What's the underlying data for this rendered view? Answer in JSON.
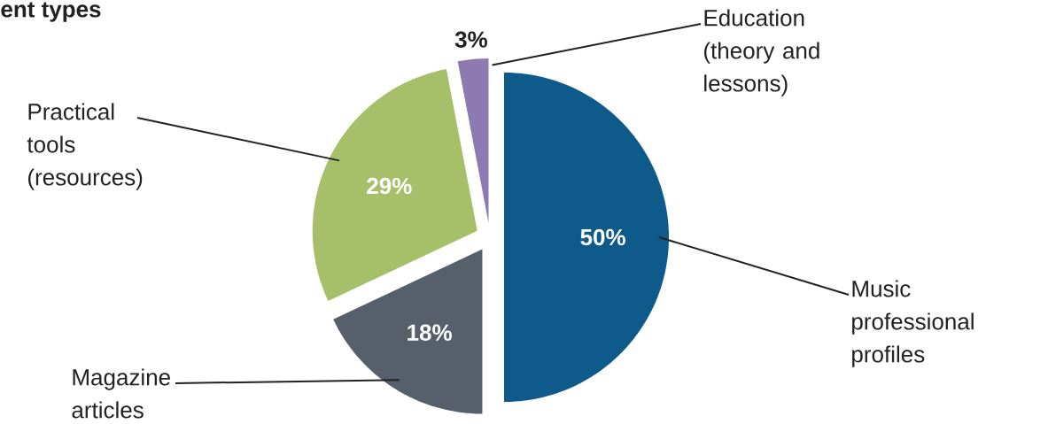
{
  "chart_data": {
    "type": "pie",
    "title": "ent types",
    "categories": [
      "Music professional profiles",
      "Magazine articles",
      "Practical tools (resources)",
      "Education (theory and lessons)"
    ],
    "values": [
      50,
      18,
      29,
      3
    ],
    "colors": [
      "#0e5a8a",
      "#575f6b",
      "#a8bf6a",
      "#8c7ab0"
    ],
    "value_labels": [
      "50%",
      "18%",
      "29%",
      "3%"
    ]
  }
}
